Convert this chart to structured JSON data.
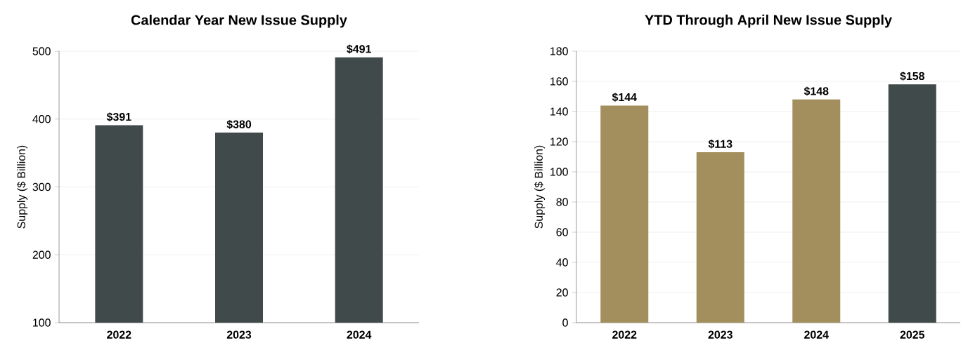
{
  "chart_data": [
    {
      "type": "bar",
      "title": "Calendar Year New Issue Supply",
      "ylabel": "Supply ($ Billion)",
      "categories": [
        "2022",
        "2023",
        "2024"
      ],
      "values": [
        391,
        380,
        491
      ],
      "value_labels": [
        "$391",
        "$380",
        "$491"
      ],
      "color": "#414a4a",
      "ylim": [
        100,
        500
      ],
      "yticks": [
        100,
        200,
        300,
        400,
        500
      ],
      "grid": "y"
    },
    {
      "type": "bar",
      "title": "YTD Through April New Issue Supply",
      "ylabel": "Supply ($ Billion)",
      "categories": [
        "2022",
        "2023",
        "2024",
        "2025"
      ],
      "values": [
        144,
        113,
        148,
        158
      ],
      "value_labels": [
        "$144",
        "$113",
        "$148",
        "$158"
      ],
      "colors": [
        "#a38f5e",
        "#a38f5e",
        "#a38f5e",
        "#414a4a"
      ],
      "ylim": [
        0,
        180
      ],
      "yticks": [
        0,
        20,
        40,
        60,
        80,
        100,
        120,
        140,
        160,
        180
      ],
      "grid": "y"
    }
  ]
}
